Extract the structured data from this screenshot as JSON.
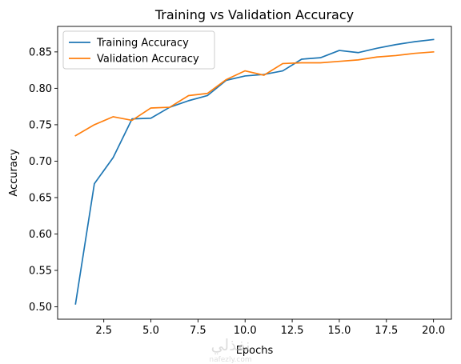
{
  "chart_data": {
    "type": "line",
    "title": "Training vs Validation Accuracy",
    "xlabel": "Epochs",
    "ylabel": "Accuracy",
    "xlim": [
      0.05,
      20.95
    ],
    "ylim": [
      0.483,
      0.885
    ],
    "x": [
      1,
      2,
      3,
      4,
      5,
      6,
      7,
      8,
      9,
      10,
      11,
      12,
      13,
      14,
      15,
      16,
      17,
      18,
      19,
      20
    ],
    "x_ticks": [
      2.5,
      5.0,
      7.5,
      10.0,
      12.5,
      15.0,
      17.5,
      20.0
    ],
    "x_tick_labels": [
      "2.5",
      "5.0",
      "7.5",
      "10.0",
      "12.5",
      "15.0",
      "17.5",
      "20.0"
    ],
    "y_ticks": [
      0.5,
      0.55,
      0.6,
      0.65,
      0.7,
      0.75,
      0.8,
      0.85
    ],
    "y_tick_labels": [
      "0.50",
      "0.55",
      "0.60",
      "0.65",
      "0.70",
      "0.75",
      "0.80",
      "0.85"
    ],
    "grid": false,
    "legend_position": "upper-left",
    "series": [
      {
        "name": "Training Accuracy",
        "color": "#1f77b4",
        "values": [
          0.504,
          0.669,
          0.705,
          0.758,
          0.759,
          0.774,
          0.783,
          0.79,
          0.811,
          0.817,
          0.819,
          0.824,
          0.84,
          0.842,
          0.852,
          0.849,
          0.855,
          0.86,
          0.864,
          0.867
        ]
      },
      {
        "name": "Validation Accuracy",
        "color": "#ff7f0e",
        "values": [
          0.735,
          0.75,
          0.761,
          0.756,
          0.773,
          0.774,
          0.79,
          0.793,
          0.812,
          0.824,
          0.818,
          0.834,
          0.835,
          0.835,
          0.837,
          0.839,
          0.843,
          0.845,
          0.848,
          0.85
        ]
      }
    ]
  },
  "watermark": {
    "text": "نفذلي",
    "subtext": "nafezly.com"
  }
}
